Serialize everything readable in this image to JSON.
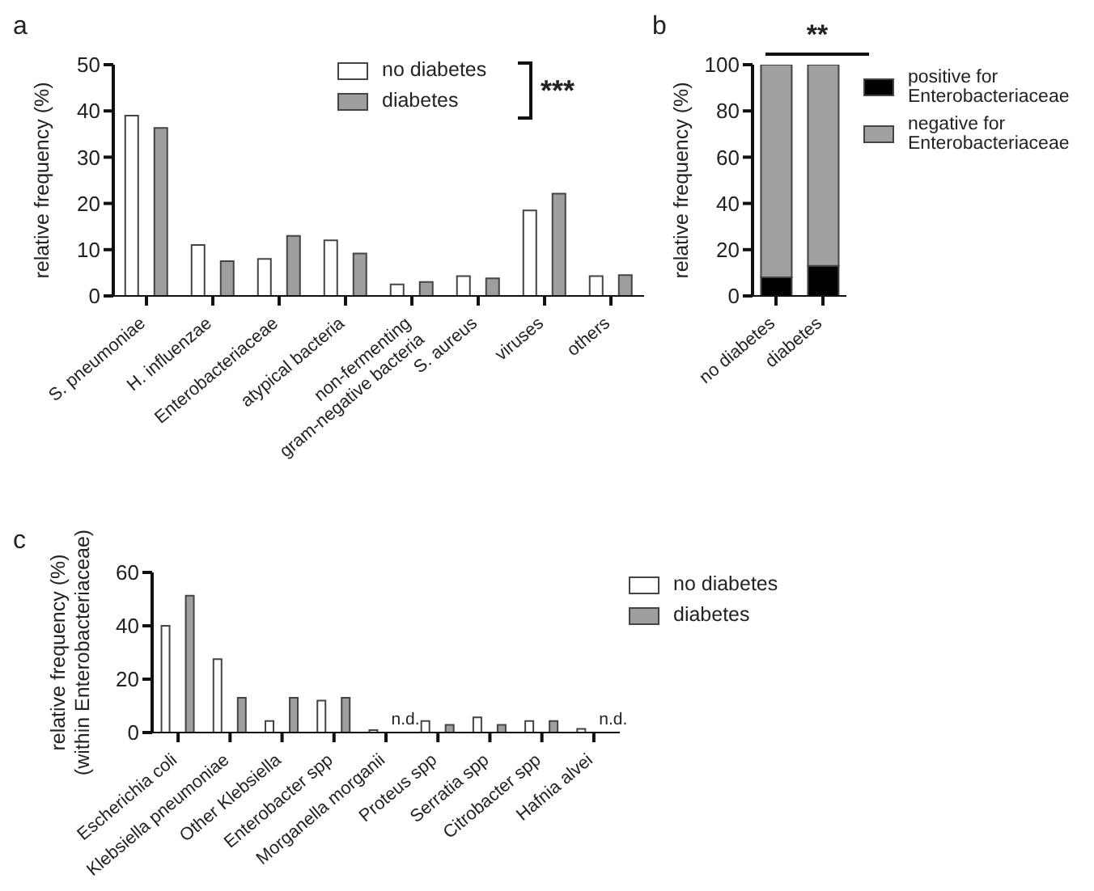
{
  "chart_data": [
    {
      "type": "bar",
      "title": "a",
      "ylabel": "relative frequency (%)",
      "categories": [
        "S. pneumoniae",
        "H. influenzae",
        "Enterobacteriaceae",
        "atypical bacteria",
        "non-fermenting gram-negative bacteria",
        "S. aureus",
        "viruses",
        "others"
      ],
      "series": [
        {
          "name": "no diabetes",
          "color": "#ffffff",
          "values": [
            39,
            11,
            8,
            12,
            2.5,
            4.3,
            18.5,
            4.3
          ]
        },
        {
          "name": "diabetes",
          "color": "#9e9e9e",
          "values": [
            36.3,
            7.5,
            13,
            9.2,
            3,
            3.8,
            22.1,
            4.5
          ]
        }
      ],
      "ylim": [
        0,
        50
      ],
      "yticks": [
        0,
        10,
        20,
        30,
        40,
        50
      ],
      "legend": "top",
      "grid": false,
      "annotations": [
        "***"
      ]
    },
    {
      "type": "bar",
      "title": "b",
      "ylabel": "relative frequency (%)",
      "stacked": true,
      "categories": [
        "no diabetes",
        "diabetes"
      ],
      "series": [
        {
          "name": "positive for Enterobacteriaceae",
          "color": "#000000",
          "values": [
            8,
            13
          ]
        },
        {
          "name": "negative for Enterobacteriaceae",
          "color": "#a0a0a0",
          "values": [
            92,
            87
          ]
        }
      ],
      "ylim": [
        0,
        100
      ],
      "yticks": [
        0,
        20,
        40,
        60,
        80,
        100
      ],
      "legend": "right",
      "grid": false,
      "annotations": [
        "**"
      ]
    },
    {
      "type": "bar",
      "title": "c",
      "ylabel": "relative frequency (%)\n(within Enterobacteriaceae)",
      "categories": [
        "Escherichia coli",
        "Klebsiella pneumoniae",
        "Other Klebsiella",
        "Enterobacter spp",
        "Morganella morganii",
        "Proteus spp",
        "Serratia spp",
        "Citrobacter spp",
        "Hafnia alvei"
      ],
      "series": [
        {
          "name": "no diabetes",
          "color": "#ffffff",
          "values": [
            40,
            27.5,
            4.3,
            12,
            0.9,
            4.3,
            5.7,
            4.3,
            1.4
          ]
        },
        {
          "name": "diabetes",
          "color": "#9e9e9e",
          "values": [
            51.3,
            13,
            13,
            13,
            null,
            2.9,
            2.9,
            4.3,
            null
          ]
        }
      ],
      "ylim": [
        0,
        60
      ],
      "yticks": [
        0,
        20,
        40,
        60
      ],
      "legend": "top right",
      "grid": false,
      "annotations": [
        "n.d.",
        "n.d."
      ]
    }
  ]
}
